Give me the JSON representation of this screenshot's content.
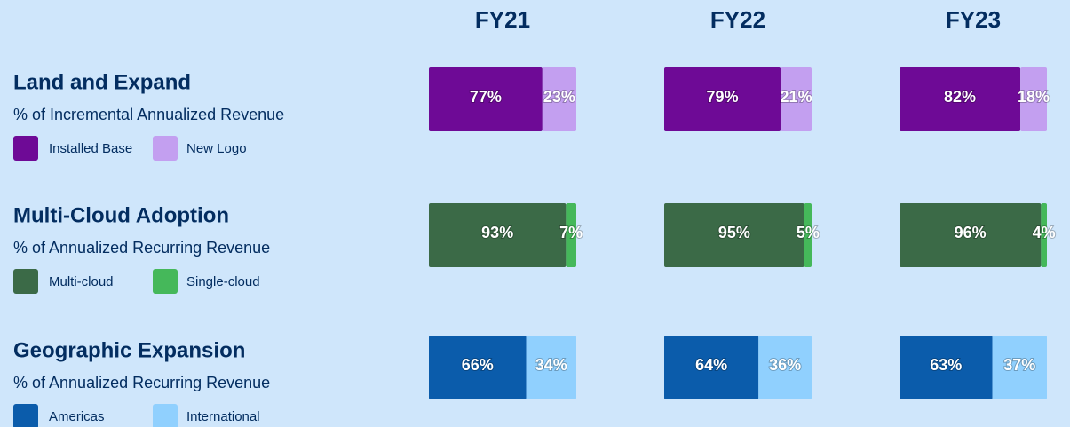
{
  "header": {
    "columns": [
      "FY21",
      "FY22",
      "FY23"
    ]
  },
  "chart_data": [
    {
      "type": "stacked-bar",
      "title": "Land and Expand",
      "subtitle": "% of Incremental Annualized Revenue",
      "xlim": [
        0,
        100
      ],
      "series": [
        {
          "name": "Installed Base",
          "color": "#6e0a96",
          "values": [
            77,
            79,
            82
          ],
          "value_labels": [
            "77%",
            "79%",
            "82%"
          ]
        },
        {
          "name": "New Logo",
          "color": "#c39ff0",
          "values": [
            23,
            21,
            18
          ],
          "value_labels": [
            "23%",
            "21%",
            "18%"
          ]
        }
      ]
    },
    {
      "type": "stacked-bar",
      "title": "Multi-Cloud Adoption",
      "subtitle": "% of Annualized Recurring Revenue",
      "xlim": [
        0,
        100
      ],
      "series": [
        {
          "name": "Multi-cloud",
          "color": "#3b6a47",
          "values": [
            93,
            95,
            96
          ],
          "value_labels": [
            "93%",
            "95%",
            "96%"
          ]
        },
        {
          "name": "Single-cloud",
          "color": "#45b85a",
          "values": [
            7,
            5,
            4
          ],
          "value_labels": [
            "7%",
            "5%",
            "4%"
          ]
        }
      ]
    },
    {
      "type": "stacked-bar",
      "title": "Geographic Expansion",
      "subtitle": "% of Annualized Recurring Revenue",
      "xlim": [
        0,
        100
      ],
      "series": [
        {
          "name": "Americas",
          "color": "#0b5cab",
          "values": [
            66,
            64,
            63
          ],
          "value_labels": [
            "66%",
            "64%",
            "63%"
          ]
        },
        {
          "name": "International",
          "color": "#90d0fe",
          "values": [
            34,
            36,
            37
          ],
          "value_labels": [
            "34%",
            "36%",
            "37%"
          ]
        }
      ]
    }
  ]
}
